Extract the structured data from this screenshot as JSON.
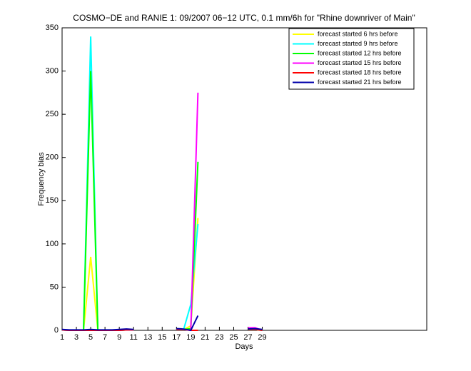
{
  "chart_data": {
    "type": "line",
    "title": "COSMO−DE and RANIE 1: 09/2007 06−12 UTC, 0.1 mm/6h for \"Rhine downriver of Main\"",
    "x_label": "Days",
    "y_label": "Frequency bias",
    "x": [
      1,
      2,
      3,
      4,
      5,
      6,
      7,
      8,
      9,
      10,
      11,
      12,
      13,
      14,
      15,
      16,
      17,
      18,
      19,
      20,
      21,
      22,
      23,
      24,
      25,
      26,
      27,
      28,
      29,
      30,
      31
    ],
    "xlim": [
      1,
      52
    ],
    "ylim": [
      0,
      350
    ],
    "xticks": [
      1,
      3,
      5,
      7,
      9,
      11,
      13,
      15,
      17,
      19,
      21,
      23,
      25,
      27,
      29
    ],
    "yticks": [
      0,
      50,
      100,
      150,
      200,
      250,
      300,
      350
    ],
    "legend_loc": "upper right",
    "series": [
      {
        "name": "forecast started 6 hrs before",
        "color": "#ffff00",
        "values": [
          0.5,
          0,
          0,
          0,
          85,
          0,
          0,
          0,
          0,
          0.5,
          0.5,
          null,
          null,
          null,
          null,
          null,
          1,
          1,
          5,
          130,
          null,
          null,
          null,
          null,
          null,
          null,
          1,
          1,
          0,
          null,
          null
        ]
      },
      {
        "name": "forecast started 9 hrs before",
        "color": "#00ffff",
        "values": [
          0.5,
          0,
          0,
          0,
          340,
          0,
          0,
          0,
          0,
          0.5,
          0.5,
          null,
          null,
          null,
          null,
          null,
          1,
          1,
          30,
          123,
          null,
          null,
          null,
          null,
          null,
          null,
          1,
          1,
          0,
          null,
          null
        ]
      },
      {
        "name": "forecast started 12 hrs before",
        "color": "#00ff00",
        "values": [
          0.5,
          0,
          0,
          0,
          300,
          0,
          0,
          0,
          0,
          0.5,
          0.5,
          null,
          null,
          null,
          null,
          null,
          1,
          1,
          2,
          195,
          null,
          null,
          null,
          null,
          null,
          null,
          1,
          1,
          0,
          null,
          null
        ]
      },
      {
        "name": "forecast started 15 hrs before",
        "color": "#ff00ff",
        "values": [
          0.5,
          0,
          0,
          0,
          0,
          0,
          0,
          0,
          0,
          0.5,
          0.5,
          null,
          null,
          null,
          null,
          null,
          1,
          1,
          0,
          275,
          null,
          null,
          null,
          null,
          null,
          null,
          3,
          3,
          0,
          null,
          null
        ]
      },
      {
        "name": "forecast started 18 hrs before",
        "color": "#ff0000",
        "values": [
          0.5,
          0,
          0,
          0,
          0,
          0,
          0,
          0,
          0,
          0.5,
          0.5,
          null,
          null,
          null,
          null,
          null,
          1,
          1,
          0,
          0,
          null,
          null,
          null,
          null,
          null,
          null,
          1,
          1,
          0,
          null,
          null
        ]
      },
      {
        "name": "forecast started 21 hrs before",
        "color": "#0000aa",
        "values": [
          1,
          0.5,
          0.5,
          0.5,
          1,
          0.5,
          0.5,
          0.5,
          1,
          1.5,
          1,
          null,
          null,
          null,
          null,
          null,
          2,
          1.5,
          0,
          17,
          null,
          null,
          null,
          null,
          null,
          null,
          1.5,
          2,
          1,
          null,
          0
        ]
      }
    ]
  }
}
